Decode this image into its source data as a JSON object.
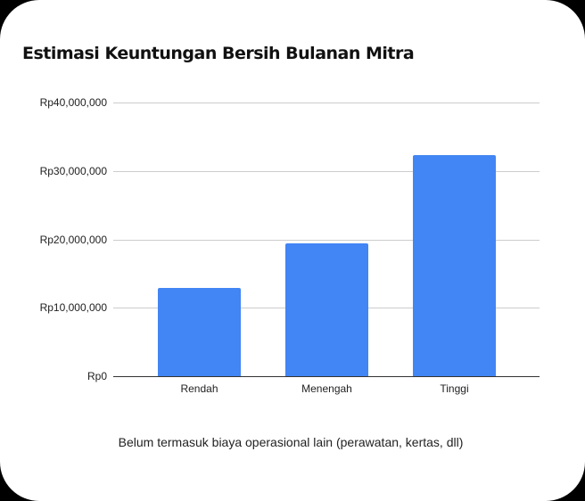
{
  "chart_data": {
    "type": "bar",
    "title": "Estimasi Keuntungan Bersih Bulanan Mitra",
    "categories": [
      "Rendah",
      "Menengah",
      "Tinggi"
    ],
    "values": [
      12900000,
      19400000,
      32300000
    ],
    "xlabel": "",
    "ylabel": "",
    "ylim": [
      0,
      40000000
    ],
    "yticks": [
      0,
      10000000,
      20000000,
      30000000,
      40000000
    ],
    "ytick_labels": [
      "Rp0",
      "Rp10,000,000",
      "Rp20,000,000",
      "Rp30,000,000",
      "Rp40,000,000"
    ],
    "grid": true,
    "legend": null,
    "bar_color": "#4285f4",
    "annotation": "Belum termasuk biaya operasional lain (perawatan, kertas, dll)"
  },
  "colors": {
    "background": "#ffffff",
    "bar": "#4285f4",
    "grid": "#cccccc",
    "axis": "#333333"
  }
}
